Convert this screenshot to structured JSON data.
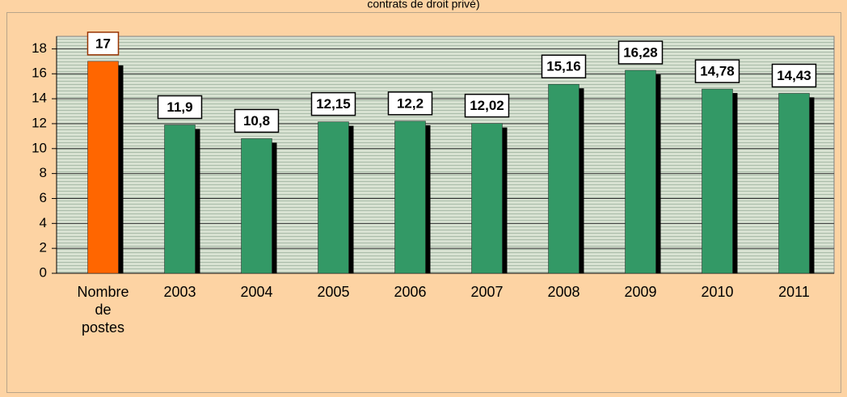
{
  "chart_data": {
    "type": "bar",
    "title": "contrats de droit privé)",
    "categories": [
      "Nombre de postes",
      "2003",
      "2004",
      "2005",
      "2006",
      "2007",
      "2008",
      "2009",
      "2010",
      "2011"
    ],
    "values": [
      17,
      11.9,
      10.8,
      12.15,
      12.2,
      12.02,
      15.16,
      16.28,
      14.78,
      14.43
    ],
    "value_labels": [
      "17",
      "11,9",
      "10,8",
      "12,15",
      "12,2",
      "12,02",
      "15,16",
      "16,28",
      "14,78",
      "14,43"
    ],
    "colors": [
      "#ff6600",
      "#339966",
      "#339966",
      "#339966",
      "#339966",
      "#339966",
      "#339966",
      "#339966",
      "#339966",
      "#339966"
    ],
    "ylim": [
      0,
      19
    ],
    "yticks": [
      0,
      2,
      4,
      6,
      8,
      10,
      12,
      14,
      16,
      18
    ],
    "grid": true
  }
}
